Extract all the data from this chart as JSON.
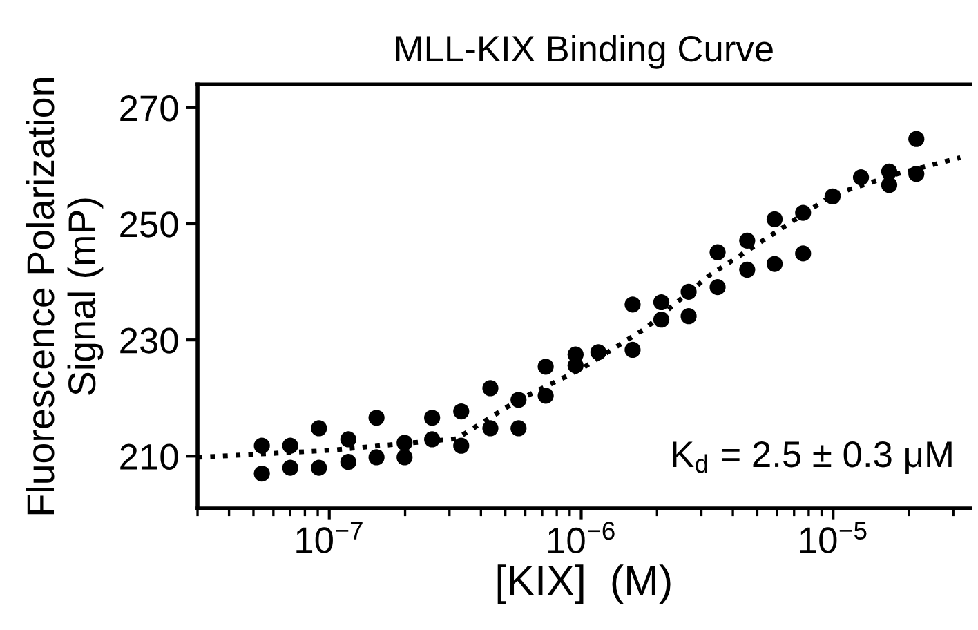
{
  "chart_data": {
    "type": "scatter",
    "title": "MLL-KIX Binding Curve",
    "xlabel": "[KIX]  (M)",
    "ylabel": "Fluorescence Polarization\nSignal (mP)",
    "log": "x",
    "xlim": [
      3e-08,
      3.5e-05
    ],
    "ylim": [
      201,
      274
    ],
    "xticks": [
      {
        "value": 1e-07,
        "label": "10$^{−7}$"
      },
      {
        "value": 1e-06,
        "label": "10$^{−6}$"
      },
      {
        "value": 1e-05,
        "label": "10$^{−5}$"
      }
    ],
    "yticks": [
      210,
      230,
      250,
      270
    ],
    "grid": false,
    "legend": false,
    "annotations": [
      "K$_{d}$ = 2.5 ± 0.3 μM"
    ],
    "series": [
      {
        "color": "#000000",
        "marker": "circle",
        "x": [
          5.4e-08,
          5.4e-08,
          7e-08,
          7e-08,
          9.1e-08,
          9.1e-08,
          1.19e-07,
          1.19e-07,
          1.54e-07,
          1.54e-07,
          1.99e-07,
          1.99e-07,
          2.56e-07,
          2.56e-07,
          3.34e-07,
          3.34e-07,
          4.36e-07,
          4.36e-07,
          5.64e-07,
          5.64e-07,
          7.23e-07,
          7.23e-07,
          9.5e-07,
          9.5e-07,
          1.17e-06,
          1.6e-06,
          1.6e-06,
          2.08e-06,
          2.08e-06,
          2.67e-06,
          2.67e-06,
          3.48e-06,
          3.48e-06,
          4.56e-06,
          4.56e-06,
          5.86e-06,
          5.86e-06,
          7.6e-06,
          7.6e-06,
          9.95e-06,
          1.29e-05,
          1.67e-05,
          1.67e-05,
          2.14e-05,
          2.14e-05
        ],
        "values": [
          211.8,
          207.0,
          211.8,
          208.0,
          214.8,
          208.0,
          212.9,
          209.0,
          216.6,
          209.8,
          212.3,
          209.8,
          216.6,
          212.9,
          217.7,
          211.8,
          221.7,
          214.8,
          219.7,
          214.8,
          225.4,
          220.4,
          227.5,
          225.6,
          227.9,
          236.1,
          228.3,
          236.5,
          233.5,
          238.3,
          234.1,
          245.1,
          239.1,
          247.1,
          242.1,
          250.8,
          243.1,
          251.9,
          244.9,
          254.7,
          258.0,
          259.0,
          256.7,
          264.6,
          258.6
        ]
      },
      {
        "type": "line",
        "color": "#000000",
        "marker": "none",
        "line_style": "dotted",
        "x": [
          3e-08,
          1e-07,
          3.2e-07,
          5.6e-07,
          1e-06,
          1.8e-06,
          3.2e-06,
          1e-05,
          1.8e-05,
          3.2e-05
        ],
        "values": [
          209.8,
          211,
          213,
          219.6,
          225,
          232,
          241,
          255,
          258.6,
          261.4
        ]
      }
    ]
  }
}
